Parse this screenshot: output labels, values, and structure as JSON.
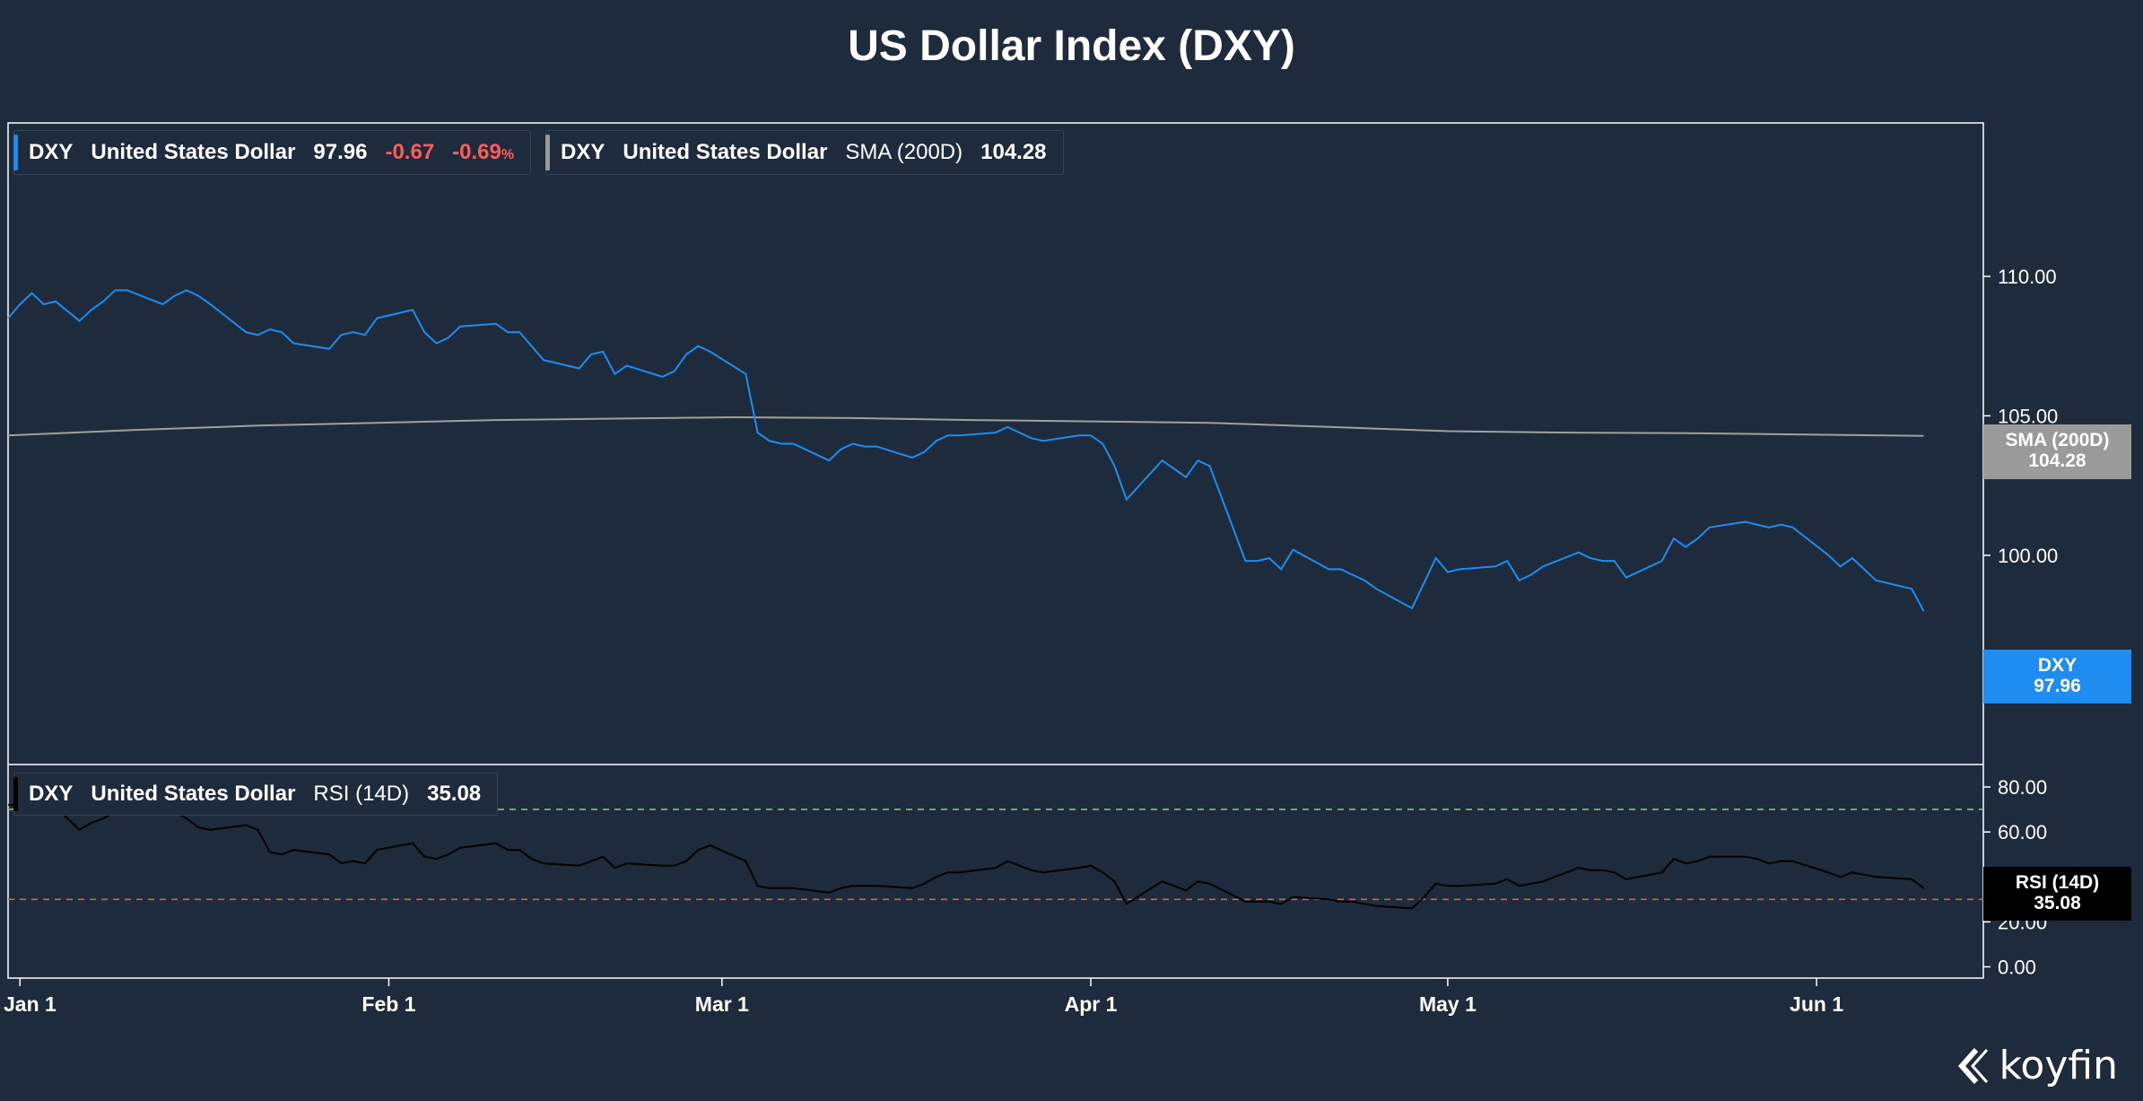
{
  "title": "US Dollar Index (DXY)",
  "branding": {
    "logo_text": "koyfin",
    "logo_icon": "koyfin-chevron-icon"
  },
  "legends": {
    "price": {
      "ticker": "DXY",
      "name": "United States Dollar",
      "last": "97.96",
      "change": "-0.67",
      "change_pct": "-0.69",
      "pct_sign": "%"
    },
    "sma": {
      "ticker": "DXY",
      "name": "United States Dollar",
      "indicator": "SMA (200D)",
      "value": "104.28"
    },
    "rsi": {
      "ticker": "DXY",
      "name": "United States Dollar",
      "indicator": "RSI (14D)",
      "value": "35.08"
    }
  },
  "tags": {
    "sma": {
      "label": "SMA (200D)",
      "value": "104.28"
    },
    "dxy": {
      "label": "DXY",
      "value": "97.96"
    },
    "rsi": {
      "label": "RSI (14D)",
      "value": "35.08"
    }
  },
  "colors": {
    "background": "#1e2b3c",
    "dxy_line": "#1e8cf0",
    "sma_line": "#a0a0a0",
    "rsi_line": "#000000",
    "overbought": "#7ec47e",
    "oversold": "#e05a5a",
    "dxy_tag": "#1e8cf0",
    "sma_tag": "#9a9a9a",
    "rsi_tag": "#000000"
  },
  "chart_data": [
    {
      "type": "line",
      "title": "US Dollar Index (DXY)",
      "panel": "price",
      "ylim": [
        92.5,
        115.5
      ],
      "yticks": [
        100,
        105,
        110
      ],
      "ytick_labels": [
        "100.00",
        "105.00",
        "110.00"
      ],
      "x_range_days": [
        -1,
        162
      ],
      "xticks": [
        {
          "day": 0,
          "label": "Jan 1"
        },
        {
          "day": 31,
          "label": "Feb 1"
        },
        {
          "day": 59,
          "label": "Mar 1"
        },
        {
          "day": 90,
          "label": "Apr 1"
        },
        {
          "day": 120,
          "label": "May 1"
        },
        {
          "day": 151,
          "label": "Jun 1"
        }
      ],
      "series": [
        {
          "name": "DXY",
          "x": [
            -1,
            0,
            1,
            2,
            3,
            5,
            6,
            7,
            8,
            9,
            12,
            13,
            14,
            15,
            16,
            19,
            20,
            21,
            22,
            23,
            26,
            27,
            28,
            29,
            30,
            33,
            34,
            35,
            36,
            37,
            40,
            41,
            42,
            43,
            44,
            47,
            48,
            49,
            50,
            51,
            54,
            55,
            56,
            57,
            58,
            61,
            62,
            63,
            64,
            65,
            68,
            69,
            70,
            71,
            72,
            75,
            76,
            77,
            78,
            79,
            82,
            83,
            84,
            85,
            86,
            89,
            90,
            91,
            92,
            93,
            96,
            97,
            98,
            99,
            100,
            103,
            104,
            105,
            106,
            107,
            110,
            111,
            112,
            113,
            114,
            117,
            118,
            119,
            120,
            121,
            124,
            125,
            126,
            127,
            128,
            131,
            132,
            133,
            134,
            135,
            138,
            139,
            140,
            141,
            142,
            145,
            146,
            147,
            148,
            149,
            152,
            153,
            154,
            155,
            156,
            159,
            160
          ],
          "values": [
            108.5,
            109.0,
            109.4,
            109.0,
            109.1,
            108.4,
            108.8,
            109.1,
            109.5,
            109.5,
            109.0,
            109.3,
            109.5,
            109.3,
            109.0,
            108.0,
            107.9,
            108.1,
            108.0,
            107.6,
            107.4,
            107.9,
            108.0,
            107.9,
            108.5,
            108.8,
            108.0,
            107.6,
            107.8,
            108.2,
            108.3,
            108.0,
            108.0,
            107.5,
            107.0,
            106.7,
            107.2,
            107.3,
            106.5,
            106.8,
            106.4,
            106.6,
            107.2,
            107.5,
            107.3,
            106.5,
            104.4,
            104.1,
            104.0,
            104.0,
            103.4,
            103.8,
            104.0,
            103.9,
            103.9,
            103.5,
            103.7,
            104.1,
            104.3,
            104.3,
            104.4,
            104.6,
            104.4,
            104.2,
            104.1,
            104.3,
            104.3,
            104.0,
            103.2,
            102.0,
            103.4,
            103.1,
            102.8,
            103.4,
            103.2,
            99.8,
            99.8,
            99.9,
            99.5,
            100.2,
            99.5,
            99.5,
            99.3,
            99.1,
            98.8,
            98.1,
            99.0,
            99.9,
            99.4,
            99.5,
            99.6,
            99.8,
            99.1,
            99.3,
            99.6,
            100.1,
            99.9,
            99.8,
            99.8,
            99.2,
            99.8,
            100.6,
            100.3,
            100.6,
            101.0,
            101.2,
            101.1,
            101.0,
            101.1,
            101.0,
            100.0,
            99.6,
            99.9,
            99.5,
            99.1,
            98.8,
            98.0
          ]
        },
        {
          "name": "SMA (200D)",
          "x": [
            -1,
            10,
            20,
            30,
            40,
            50,
            60,
            70,
            80,
            90,
            100,
            110,
            120,
            130,
            140,
            150,
            160
          ],
          "values": [
            104.3,
            104.5,
            104.65,
            104.75,
            104.85,
            104.9,
            104.95,
            104.92,
            104.85,
            104.8,
            104.75,
            104.6,
            104.45,
            104.4,
            104.38,
            104.33,
            104.28
          ]
        }
      ]
    },
    {
      "type": "line",
      "panel": "indicator",
      "ylim": [
        -5,
        90
      ],
      "yticks": [
        0,
        20,
        60,
        80
      ],
      "ytick_labels": [
        "0.00",
        "20.00",
        "60.00",
        "80.00"
      ],
      "reference_lines": [
        {
          "name": "overbought",
          "value": 70
        },
        {
          "name": "oversold",
          "value": 30
        }
      ],
      "series": [
        {
          "name": "RSI (14D)",
          "x_same_as": "DXY",
          "values": [
            72,
            72,
            73,
            70,
            71,
            61,
            64,
            66,
            69,
            70,
            71,
            69,
            66,
            62,
            61,
            63,
            61,
            51,
            50,
            52,
            50,
            46,
            47,
            46,
            52,
            55,
            49,
            48,
            50,
            53,
            55,
            52,
            52,
            48,
            46,
            45,
            47,
            49,
            44,
            46,
            45,
            45,
            47,
            52,
            54,
            47,
            36,
            35,
            35,
            35,
            33,
            35,
            36,
            36,
            36,
            35,
            37,
            40,
            42,
            42,
            44,
            47,
            45,
            43,
            42,
            44,
            45,
            42,
            38,
            28,
            38,
            36,
            34,
            38,
            37,
            29,
            29,
            29,
            28,
            31,
            30,
            29,
            29,
            28,
            27,
            26,
            31,
            37,
            36,
            36,
            37,
            39,
            36,
            37,
            38,
            44,
            43,
            43,
            42,
            39,
            42,
            48,
            46,
            47,
            49,
            49,
            48,
            46,
            47,
            47,
            42,
            40,
            42,
            41,
            40,
            39,
            35
          ]
        }
      ]
    }
  ]
}
